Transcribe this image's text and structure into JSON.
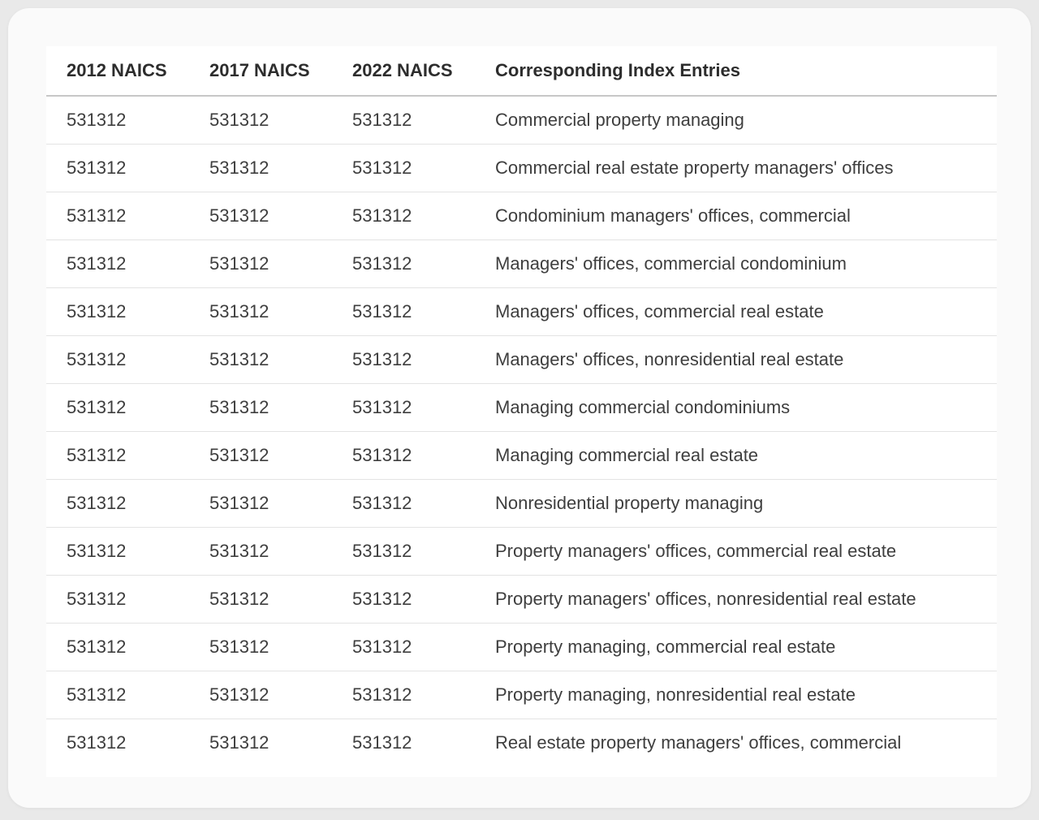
{
  "table": {
    "columns": [
      {
        "id": "naics_2012",
        "label": "2012 NAICS"
      },
      {
        "id": "naics_2017",
        "label": "2017 NAICS"
      },
      {
        "id": "naics_2022",
        "label": "2022 NAICS"
      },
      {
        "id": "index_entry",
        "label": "Corresponding Index Entries"
      }
    ],
    "rows": [
      {
        "naics_2012": "531312",
        "naics_2017": "531312",
        "naics_2022": "531312",
        "index_entry": "Commercial property managing"
      },
      {
        "naics_2012": "531312",
        "naics_2017": "531312",
        "naics_2022": "531312",
        "index_entry": "Commercial real estate property managers' offices"
      },
      {
        "naics_2012": "531312",
        "naics_2017": "531312",
        "naics_2022": "531312",
        "index_entry": "Condominium managers' offices, commercial"
      },
      {
        "naics_2012": "531312",
        "naics_2017": "531312",
        "naics_2022": "531312",
        "index_entry": "Managers' offices, commercial condominium"
      },
      {
        "naics_2012": "531312",
        "naics_2017": "531312",
        "naics_2022": "531312",
        "index_entry": "Managers' offices, commercial real estate"
      },
      {
        "naics_2012": "531312",
        "naics_2017": "531312",
        "naics_2022": "531312",
        "index_entry": "Managers' offices, nonresidential real estate"
      },
      {
        "naics_2012": "531312",
        "naics_2017": "531312",
        "naics_2022": "531312",
        "index_entry": "Managing commercial condominiums"
      },
      {
        "naics_2012": "531312",
        "naics_2017": "531312",
        "naics_2022": "531312",
        "index_entry": "Managing commercial real estate"
      },
      {
        "naics_2012": "531312",
        "naics_2017": "531312",
        "naics_2022": "531312",
        "index_entry": "Nonresidential property managing"
      },
      {
        "naics_2012": "531312",
        "naics_2017": "531312",
        "naics_2022": "531312",
        "index_entry": "Property managers' offices, commercial real estate"
      },
      {
        "naics_2012": "531312",
        "naics_2017": "531312",
        "naics_2022": "531312",
        "index_entry": "Property managers' offices, nonresidential real estate"
      },
      {
        "naics_2012": "531312",
        "naics_2017": "531312",
        "naics_2022": "531312",
        "index_entry": "Property managing, commercial real estate"
      },
      {
        "naics_2012": "531312",
        "naics_2017": "531312",
        "naics_2022": "531312",
        "index_entry": "Property managing, nonresidential real estate"
      },
      {
        "naics_2012": "531312",
        "naics_2017": "531312",
        "naics_2022": "531312",
        "index_entry": "Real estate property managers' offices, commercial"
      }
    ]
  }
}
